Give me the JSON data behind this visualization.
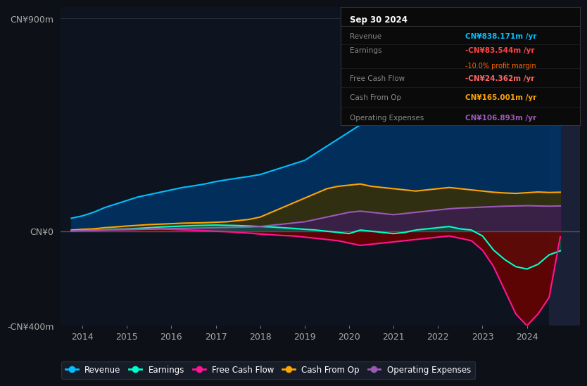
{
  "bg_color": "#0d1117",
  "plot_bg_color": "#0d1420",
  "ylabel_top": "CN¥900m",
  "ylabel_zero": "CN¥0",
  "ylabel_bottom": "-CN¥400m",
  "ylim": [
    -400,
    950
  ],
  "xlim_start": 2013.5,
  "xlim_end": 2025.2,
  "xticks": [
    2014,
    2015,
    2016,
    2017,
    2018,
    2019,
    2020,
    2021,
    2022,
    2023,
    2024
  ],
  "years": [
    2013.75,
    2014.0,
    2014.25,
    2014.5,
    2014.75,
    2015.0,
    2015.25,
    2015.5,
    2015.75,
    2016.0,
    2016.25,
    2016.5,
    2016.75,
    2017.0,
    2017.25,
    2017.5,
    2017.75,
    2018.0,
    2018.25,
    2018.5,
    2018.75,
    2019.0,
    2019.25,
    2019.5,
    2019.75,
    2020.0,
    2020.25,
    2020.5,
    2020.75,
    2021.0,
    2021.25,
    2021.5,
    2021.75,
    2022.0,
    2022.25,
    2022.5,
    2022.75,
    2023.0,
    2023.25,
    2023.5,
    2023.75,
    2024.0,
    2024.25,
    2024.5,
    2024.75
  ],
  "revenue": [
    55,
    65,
    80,
    100,
    115,
    130,
    145,
    155,
    165,
    175,
    185,
    192,
    200,
    210,
    218,
    225,
    232,
    240,
    255,
    270,
    285,
    300,
    330,
    360,
    390,
    420,
    450,
    470,
    490,
    510,
    525,
    540,
    555,
    600,
    650,
    700,
    740,
    770,
    800,
    820,
    840,
    860,
    855,
    820,
    838
  ],
  "earnings": [
    2,
    3,
    5,
    6,
    8,
    10,
    12,
    15,
    18,
    20,
    22,
    24,
    25,
    26,
    25,
    24,
    22,
    20,
    18,
    15,
    12,
    8,
    5,
    0,
    -5,
    -10,
    5,
    0,
    -5,
    -10,
    -5,
    5,
    10,
    15,
    20,
    10,
    5,
    -20,
    -80,
    -120,
    -150,
    -160,
    -140,
    -100,
    -83
  ],
  "free_cash_flow": [
    1,
    2,
    3,
    5,
    6,
    7,
    8,
    9,
    10,
    8,
    6,
    4,
    2,
    0,
    -2,
    -5,
    -8,
    -12,
    -15,
    -18,
    -20,
    -25,
    -30,
    -35,
    -40,
    -50,
    -60,
    -55,
    -50,
    -45,
    -40,
    -35,
    -30,
    -25,
    -20,
    -30,
    -40,
    -80,
    -150,
    -250,
    -350,
    -400,
    -350,
    -280,
    -24
  ],
  "cash_from_op": [
    5,
    8,
    10,
    15,
    18,
    22,
    25,
    28,
    30,
    32,
    34,
    35,
    36,
    38,
    40,
    45,
    50,
    60,
    80,
    100,
    120,
    140,
    160,
    180,
    190,
    195,
    200,
    190,
    185,
    180,
    175,
    170,
    175,
    180,
    185,
    180,
    175,
    170,
    165,
    162,
    160,
    163,
    166,
    164,
    165
  ],
  "operating_expenses": [
    2,
    3,
    4,
    5,
    6,
    7,
    8,
    9,
    10,
    11,
    12,
    13,
    14,
    15,
    16,
    17,
    18,
    20,
    25,
    30,
    35,
    40,
    50,
    60,
    70,
    80,
    85,
    80,
    75,
    70,
    75,
    80,
    85,
    90,
    95,
    98,
    100,
    102,
    104,
    106,
    107,
    108,
    107,
    106,
    107
  ],
  "revenue_color": "#00bfff",
  "earnings_color": "#00ffcc",
  "free_cash_flow_color": "#ff1493",
  "cash_from_op_color": "#ffa500",
  "operating_expenses_color": "#9b59b6",
  "revenue_fill_color": "#003366",
  "earnings_fill_color": "#006644",
  "free_cash_flow_fill_color": "#6b0000",
  "cash_from_op_fill_color": "#3d3000",
  "operating_expenses_fill_color": "#3d1a5c",
  "grid_color": "#2a3040",
  "zero_line_color": "#4a5060",
  "legend_items": [
    "Revenue",
    "Earnings",
    "Free Cash Flow",
    "Cash From Op",
    "Operating Expenses"
  ],
  "legend_colors": [
    "#00bfff",
    "#00ffcc",
    "#ff1493",
    "#ffa500",
    "#9b59b6"
  ],
  "tooltip_title": "Sep 30 2024",
  "tooltip_revenue_label": "Revenue",
  "tooltip_revenue_val": "CN¥838.171m /yr",
  "tooltip_revenue_color": "#00bfff",
  "tooltip_earnings_label": "Earnings",
  "tooltip_earnings_val": "-CN¥83.544m /yr",
  "tooltip_earnings_color": "#ff4444",
  "tooltip_profit_margin": "-10.0% profit margin",
  "tooltip_profit_color": "#ff6600",
  "tooltip_fcf_label": "Free Cash Flow",
  "tooltip_fcf_val": "-CN¥24.362m /yr",
  "tooltip_fcf_color": "#ff6666",
  "tooltip_cash_op_label": "Cash From Op",
  "tooltip_cash_op_val": "CN¥165.001m /yr",
  "tooltip_cash_op_color": "#ffa500",
  "tooltip_op_exp_label": "Operating Expenses",
  "tooltip_op_exp_val": "CN¥106.893m /yr",
  "tooltip_op_exp_color": "#9b59b6",
  "highlight_color": "#1a2035"
}
